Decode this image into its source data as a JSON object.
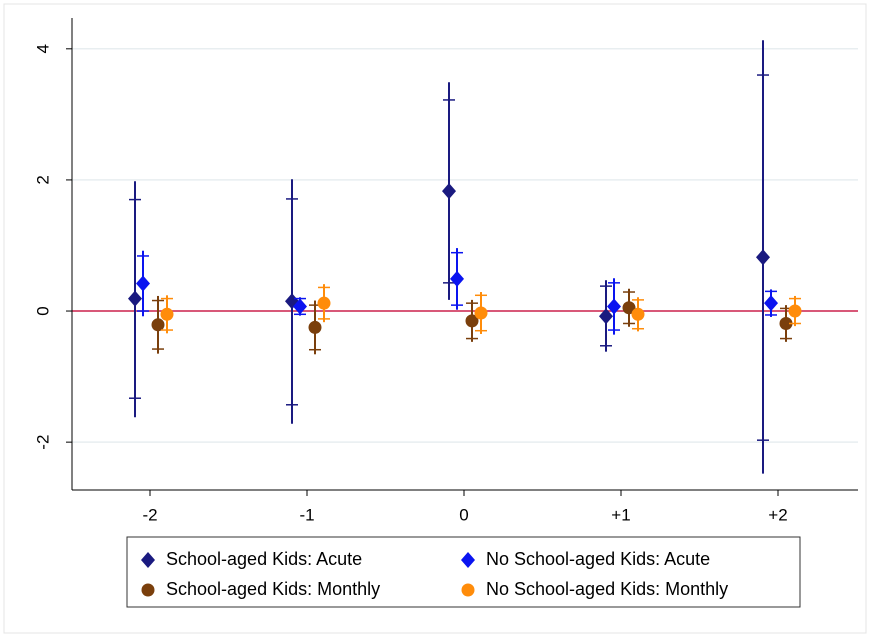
{
  "chart_data": {
    "type": "coefplot",
    "categories": [
      "-2",
      "-1",
      "0",
      "+1",
      "+2"
    ],
    "ylim": [
      -2.73,
      4.47
    ],
    "yticks": [
      -2,
      0,
      2,
      4
    ],
    "grid": true,
    "reference_line": {
      "value": 0,
      "color": "#d0234e"
    },
    "legend_position": "bottom",
    "series": [
      {
        "name": "School-aged Kids: Acute",
        "color": "#1a1a80",
        "marker": "diamond",
        "values": [
          0.19,
          0.15,
          1.83,
          -0.08,
          0.82
        ],
        "ci95_low": [
          -1.62,
          -1.72,
          0.17,
          -0.62,
          -2.48
        ],
        "ci95_high": [
          1.98,
          2.01,
          3.49,
          0.47,
          4.13
        ],
        "ci90_low": [
          -1.33,
          -1.43,
          0.43,
          -0.53,
          -1.97
        ],
        "ci90_high": [
          1.7,
          1.71,
          3.22,
          0.38,
          3.6
        ]
      },
      {
        "name": "No School-aged Kids: Acute",
        "color": "#0a14f0",
        "marker": "diamond",
        "values": [
          0.42,
          0.07,
          0.49,
          0.07,
          0.12
        ],
        "ci95_low": [
          -0.08,
          -0.07,
          0.02,
          -0.36,
          -0.09
        ],
        "ci95_high": [
          0.92,
          0.21,
          0.96,
          0.5,
          0.33
        ],
        "ci90_low": [
          0.0,
          -0.05,
          0.09,
          -0.29,
          -0.06
        ],
        "ci90_high": [
          0.84,
          0.19,
          0.89,
          0.43,
          0.3
        ]
      },
      {
        "name": "School-aged Kids: Monthly",
        "color": "#7a3f0c",
        "marker": "circle",
        "values": [
          -0.21,
          -0.25,
          -0.15,
          0.05,
          -0.19
        ],
        "ci95_low": [
          -0.65,
          -0.66,
          -0.47,
          -0.24,
          -0.47
        ],
        "ci95_high": [
          0.23,
          0.16,
          0.17,
          0.34,
          0.09
        ],
        "ci90_low": [
          -0.58,
          -0.59,
          -0.42,
          -0.19,
          -0.42
        ],
        "ci90_high": [
          0.16,
          0.09,
          0.12,
          0.29,
          0.04
        ]
      },
      {
        "name": "No School-aged Kids: Monthly",
        "color": "#ff8c0a",
        "marker": "circle",
        "values": [
          -0.05,
          0.12,
          -0.03,
          -0.05,
          0.0
        ],
        "ci95_low": [
          -0.34,
          -0.17,
          -0.35,
          -0.31,
          -0.23
        ],
        "ci95_high": [
          0.24,
          0.41,
          0.29,
          0.21,
          0.23
        ],
        "ci90_low": [
          -0.29,
          -0.12,
          -0.3,
          -0.27,
          -0.19
        ],
        "ci90_high": [
          0.19,
          0.36,
          0.24,
          0.17,
          0.19
        ]
      }
    ]
  }
}
